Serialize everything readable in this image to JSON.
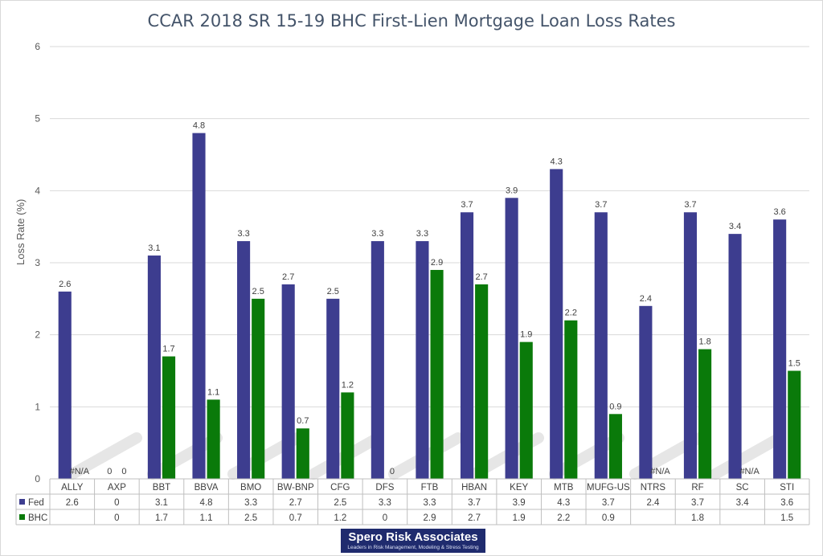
{
  "chart_data": {
    "type": "bar",
    "title": "CCAR 2018 SR 15-19 BHC First-Lien Mortgage Loan Loss Rates",
    "xlabel": "",
    "ylabel": "Loss Rate (%)",
    "ylim": [
      0,
      6
    ],
    "yticks": [
      0,
      1,
      2,
      3,
      4,
      5,
      6
    ],
    "grid": true,
    "legend": "data table",
    "categories": [
      "ALLY",
      "AXP",
      "BBT",
      "BBVA",
      "BMO",
      "BW-BNP",
      "CFG",
      "DFS",
      "FTB",
      "HBAN",
      "KEY",
      "MTB",
      "MUFG-US",
      "NTRS",
      "RF",
      "SC",
      "STI"
    ],
    "series": [
      {
        "name": "Fed",
        "color": "#3d3d8f",
        "values": [
          2.6,
          0,
          3.1,
          4.8,
          3.3,
          2.7,
          2.5,
          3.3,
          3.3,
          3.7,
          3.9,
          4.3,
          3.7,
          2.4,
          3.7,
          3.4,
          3.6
        ]
      },
      {
        "name": "BHC",
        "color": "#0a7a0a",
        "values": [
          null,
          0,
          1.7,
          1.1,
          2.5,
          0.7,
          1.2,
          0,
          2.9,
          2.7,
          1.9,
          2.2,
          0.9,
          null,
          1.8,
          null,
          1.5
        ]
      }
    ],
    "na_label": "#N/A",
    "source": "Spero Risk Associates",
    "source_tagline": "Leaders in Risk Management, Modeling & Stress Testing"
  }
}
